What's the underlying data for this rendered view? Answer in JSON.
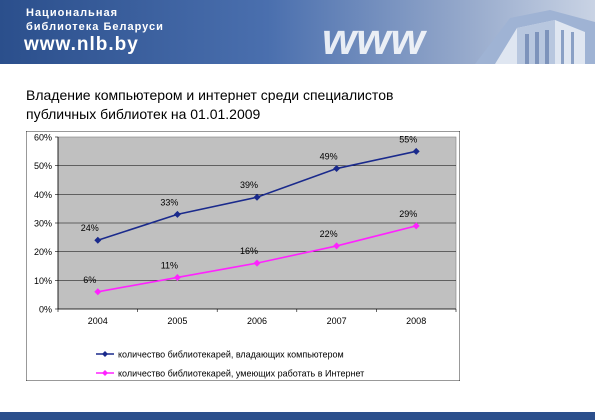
{
  "banner": {
    "line1": "Национальная",
    "line2": "библиотека Беларуси",
    "url": "www.nlb.by",
    "logo_text": "www"
  },
  "slide": {
    "title_line1": "Владение компьютером и интернет среди специалистов",
    "title_line2": "публичных библиотек на 01.01.2009"
  },
  "colors": {
    "banner": "#2b4f8c",
    "plot_area": "#c0c0c0",
    "series1": "#1a2a8c",
    "series2": "#ff22ff"
  },
  "chart_data": {
    "type": "line",
    "title": "",
    "xlabel": "",
    "ylabel": "",
    "categories": [
      "2004",
      "2005",
      "2006",
      "2007",
      "2008"
    ],
    "yticks": [
      "0%",
      "10%",
      "20%",
      "30%",
      "40%",
      "50%",
      "60%"
    ],
    "ylim": [
      0,
      60
    ],
    "grid": "horizontal",
    "legend_position": "bottom",
    "series": [
      {
        "name": "количество библиотекарей, владающих компьютером",
        "values": [
          24,
          33,
          39,
          49,
          55
        ],
        "labels": [
          "24%",
          "33%",
          "39%",
          "49%",
          "55%"
        ],
        "color": "#1a2a8c",
        "marker": "diamond"
      },
      {
        "name": "количество библиотекарей, умеющих работать в Интернет",
        "values": [
          6,
          11,
          16,
          22,
          29
        ],
        "labels": [
          "6%",
          "11%",
          "16%",
          "22%",
          "29%"
        ],
        "color": "#ff22ff",
        "marker": "diamond"
      }
    ]
  }
}
